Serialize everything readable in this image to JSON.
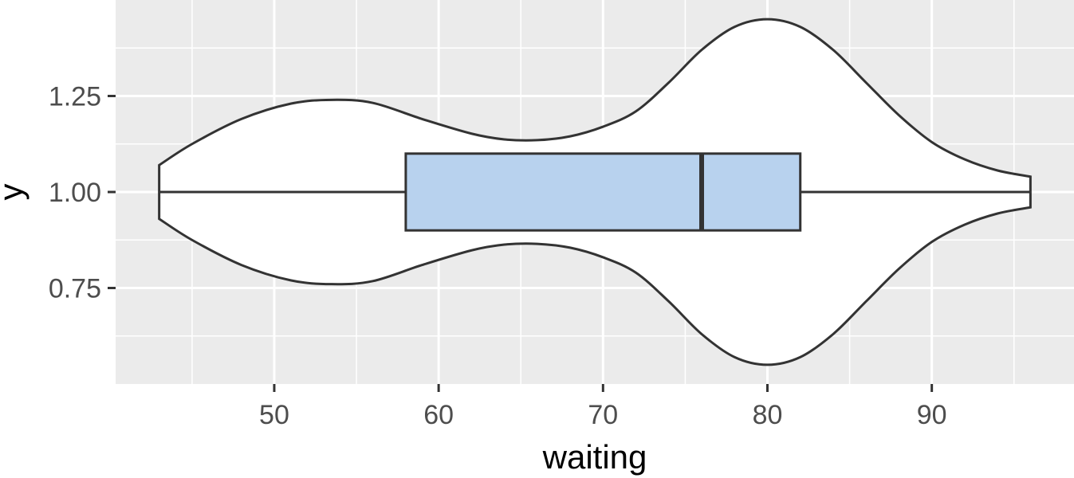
{
  "chart_data": {
    "type": "violin",
    "orientation": "horizontal",
    "xlabel": "waiting",
    "ylabel": "y",
    "xlim": [
      40.35,
      98.65
    ],
    "ylim": [
      0.5,
      1.5
    ],
    "x_ticks": [
      50,
      60,
      70,
      80,
      90
    ],
    "x_tick_labels": [
      "50",
      "60",
      "70",
      "80",
      "90"
    ],
    "x_minor_ticks": [
      45,
      55,
      65,
      75,
      85,
      95
    ],
    "y_ticks": [
      0.75,
      1.0,
      1.25
    ],
    "y_tick_labels": [
      "0.75",
      "1.00",
      "1.25"
    ],
    "y_minor_ticks": [
      0.625,
      0.875,
      1.125,
      1.375
    ],
    "grid": true,
    "background": "#ebebeb",
    "violin": {
      "center": 1.0,
      "fill": "#ffffff",
      "stroke": "#333333",
      "profile": [
        [
          43,
          0.07
        ],
        [
          45,
          0.125
        ],
        [
          48,
          0.19
        ],
        [
          51,
          0.23
        ],
        [
          53.5,
          0.24
        ],
        [
          56,
          0.232
        ],
        [
          59,
          0.19
        ],
        [
          62,
          0.152
        ],
        [
          64,
          0.137
        ],
        [
          66,
          0.135
        ],
        [
          68,
          0.145
        ],
        [
          70,
          0.17
        ],
        [
          72,
          0.21
        ],
        [
          74,
          0.285
        ],
        [
          76,
          0.37
        ],
        [
          78,
          0.43
        ],
        [
          80,
          0.45
        ],
        [
          82,
          0.43
        ],
        [
          84,
          0.37
        ],
        [
          86,
          0.285
        ],
        [
          88,
          0.2
        ],
        [
          90,
          0.13
        ],
        [
          92,
          0.085
        ],
        [
          94,
          0.056
        ],
        [
          96,
          0.04
        ]
      ]
    },
    "boxplot": {
      "min": 43,
      "q1": 58,
      "median": 76,
      "q3": 82,
      "max": 96,
      "half_width": 0.1,
      "fill": "#b8d2ee",
      "stroke": "#333333"
    }
  }
}
